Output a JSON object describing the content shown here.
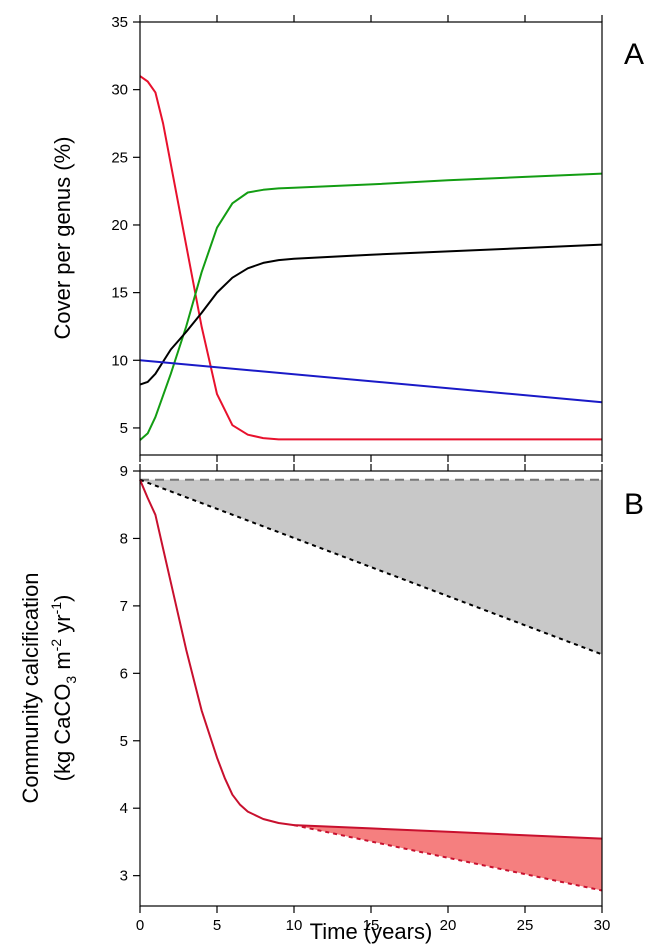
{
  "chart_data": [
    {
      "panel": "A",
      "type": "line",
      "xlabel": "",
      "ylabel": "Cover per genus (%)",
      "xlim": [
        0,
        30
      ],
      "ylim": [
        3,
        35
      ],
      "yticks": [
        5,
        10,
        15,
        20,
        25,
        30,
        35
      ],
      "grid": false,
      "series": [
        {
          "color": "#e8112d",
          "x": [
            0,
            0.5,
            1,
            1.5,
            2,
            3,
            4,
            5,
            6,
            7,
            8,
            9,
            10,
            15,
            20,
            25,
            30
          ],
          "y": [
            31,
            30.6,
            29.8,
            27.5,
            24.5,
            18.5,
            12.5,
            7.5,
            5.2,
            4.5,
            4.25,
            4.15,
            4.15,
            4.15,
            4.15,
            4.15,
            4.15
          ]
        },
        {
          "color": "#139d13",
          "x": [
            0,
            0.5,
            1,
            2,
            3,
            4,
            5,
            6,
            7,
            8,
            9,
            10,
            15,
            20,
            25,
            30
          ],
          "y": [
            4.1,
            4.6,
            5.8,
            9,
            12.5,
            16.5,
            19.8,
            21.6,
            22.4,
            22.6,
            22.7,
            22.75,
            23.0,
            23.3,
            23.55,
            23.8
          ]
        },
        {
          "color": "#000000",
          "x": [
            0,
            0.5,
            1,
            1.5,
            2,
            3,
            4,
            5,
            6,
            7,
            8,
            9,
            10,
            15,
            20,
            25,
            30
          ],
          "y": [
            8.2,
            8.4,
            9.0,
            9.9,
            10.8,
            12.1,
            13.5,
            15.0,
            16.1,
            16.8,
            17.2,
            17.4,
            17.5,
            17.8,
            18.05,
            18.3,
            18.55
          ]
        },
        {
          "color": "#1a1ac7",
          "x": [
            0,
            30
          ],
          "y": [
            10.0,
            6.9
          ]
        }
      ]
    },
    {
      "panel": "B",
      "type": "line",
      "xlabel": "Time (years)",
      "ylabel_line1": "Community calcification",
      "ylabel_line2": "(kg CaCO",
      "ylabel_sub": "3",
      "ylabel_mid": " m",
      "ylabel_sup1": "-2",
      "ylabel_mid2": " yr",
      "ylabel_sup2": "-1",
      "ylabel_end": ")",
      "xlim": [
        0,
        30
      ],
      "ylim": [
        2.55,
        9
      ],
      "xticks": [
        0,
        5,
        10,
        15,
        20,
        25,
        30
      ],
      "yticks": [
        3,
        4,
        5,
        6,
        7,
        8,
        9
      ],
      "grid": false,
      "series": [
        {
          "style": "dashed-gray",
          "color": "#777777",
          "x": [
            0,
            30
          ],
          "y": [
            8.87,
            8.87
          ]
        },
        {
          "style": "dotted-black",
          "color": "#000000",
          "x": [
            0,
            30
          ],
          "y": [
            8.87,
            6.28
          ]
        },
        {
          "style": "solid-red",
          "color": "#c8102e",
          "x": [
            0,
            0.5,
            1,
            1.5,
            2,
            3,
            4,
            5,
            5.5,
            6,
            6.5,
            7,
            8,
            9,
            10,
            15,
            20,
            25,
            30
          ],
          "y": [
            8.87,
            8.6,
            8.35,
            7.85,
            7.35,
            6.35,
            5.45,
            4.75,
            4.45,
            4.2,
            4.05,
            3.95,
            3.84,
            3.78,
            3.75,
            3.7,
            3.65,
            3.6,
            3.55
          ]
        },
        {
          "style": "dotted-red",
          "color": "#c8102e",
          "x": [
            10,
            30
          ],
          "y": [
            3.75,
            2.78
          ]
        }
      ],
      "shaded_areas": [
        {
          "color": "#c8c8c8",
          "between": [
            "dashed-gray",
            "dotted-black"
          ]
        },
        {
          "color": "#f57f7f",
          "between": [
            "solid-red",
            "dotted-red"
          ],
          "from_x": 10
        }
      ]
    }
  ],
  "panel_labels": [
    "A",
    "B"
  ]
}
